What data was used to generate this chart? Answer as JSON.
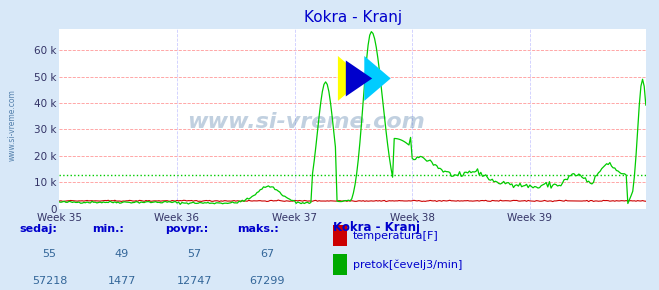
{
  "title": "Kokra - Kranj",
  "title_color": "#0000cc",
  "bg_color": "#d8e8f8",
  "plot_bg_color": "#ffffff",
  "grid_color_h": "#ff9999",
  "grid_color_v": "#ccccff",
  "axis_color": "#cc0000",
  "watermark": "www.si-vreme.com",
  "side_label": "www.si-vreme.com",
  "xticklabels": [
    "Week 35",
    "Week 36",
    "Week 37",
    "Week 38",
    "Week 39"
  ],
  "yticks": [
    0,
    10000,
    20000,
    30000,
    40000,
    50000,
    60000
  ],
  "yticklabels": [
    "0",
    "10 k",
    "20 k",
    "30 k",
    "40 k",
    "50 k",
    "60 k"
  ],
  "ylim": [
    0,
    68000
  ],
  "n_points": 360,
  "flow_color": "#00cc00",
  "temp_color": "#cc0000",
  "temp_level": 3000,
  "povpr_flow": 12747,
  "legend_title": "Kokra - Kranj",
  "legend_items": [
    {
      "label": "temperatura[F]",
      "color": "#cc0000"
    },
    {
      "label": "pretok[čevelj3/min]",
      "color": "#00aa00"
    }
  ],
  "stats_headers": [
    "sedaj:",
    "min.:",
    "povpr.:",
    "maks.:"
  ],
  "stats_temp": [
    55,
    49,
    57,
    67
  ],
  "stats_flow": [
    57218,
    1477,
    12747,
    67299
  ],
  "footer_bg_color": "#ddeeff",
  "footer_text_color": "#0000cc",
  "stats_value_color": "#336699"
}
